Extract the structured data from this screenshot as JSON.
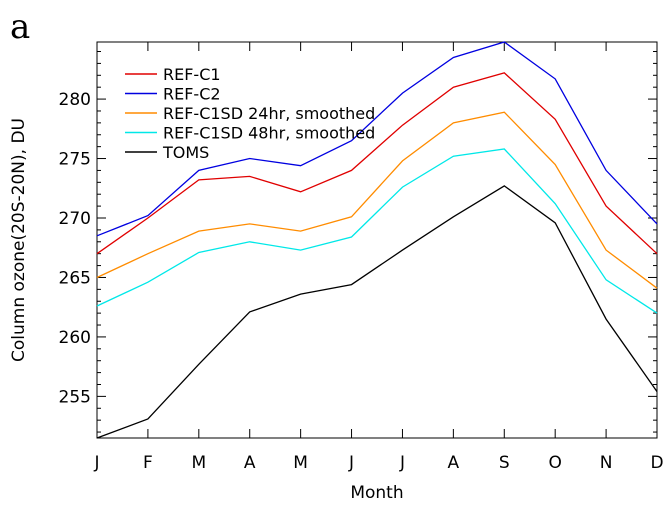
{
  "panel_label": "a",
  "chart_data": {
    "type": "line",
    "xlabel": "Month",
    "ylabel": "Column ozone(20S-20N), DU",
    "categories": [
      "J",
      "F",
      "M",
      "A",
      "M",
      "J",
      "J",
      "A",
      "S",
      "O",
      "N",
      "D"
    ],
    "ylim": [
      251.5,
      284.8
    ],
    "yticks": [
      255,
      260,
      265,
      270,
      275,
      280
    ],
    "legend_placement": "top-left",
    "grid": false,
    "series": [
      {
        "name": "REF-C1",
        "color": "#e00000",
        "values": [
          267.0,
          270.0,
          273.2,
          273.5,
          272.2,
          274.0,
          277.8,
          281.0,
          282.2,
          278.3,
          271.0,
          267.0
        ]
      },
      {
        "name": "REF-C2",
        "color": "#0000e0",
        "values": [
          268.5,
          270.2,
          274.0,
          275.0,
          274.4,
          276.5,
          280.5,
          283.5,
          284.8,
          281.7,
          274.0,
          269.5
        ]
      },
      {
        "name": "REF-C1SD 24hr, smoothed",
        "color": "#ff8c00",
        "values": [
          265.0,
          267.0,
          268.9,
          269.5,
          268.9,
          270.1,
          274.8,
          278.0,
          278.9,
          274.5,
          267.3,
          264.1
        ]
      },
      {
        "name": "REF-C1SD 48hr, smoothed",
        "color": "#00e8e8",
        "values": [
          262.6,
          264.6,
          267.1,
          268.0,
          267.3,
          268.4,
          272.6,
          275.2,
          275.8,
          271.2,
          264.8,
          262.0
        ]
      },
      {
        "name": "TOMS",
        "color": "#000000",
        "values": [
          251.5,
          253.1,
          257.7,
          262.1,
          263.6,
          264.4,
          267.3,
          270.1,
          272.7,
          269.6,
          261.5,
          255.4
        ]
      }
    ]
  }
}
